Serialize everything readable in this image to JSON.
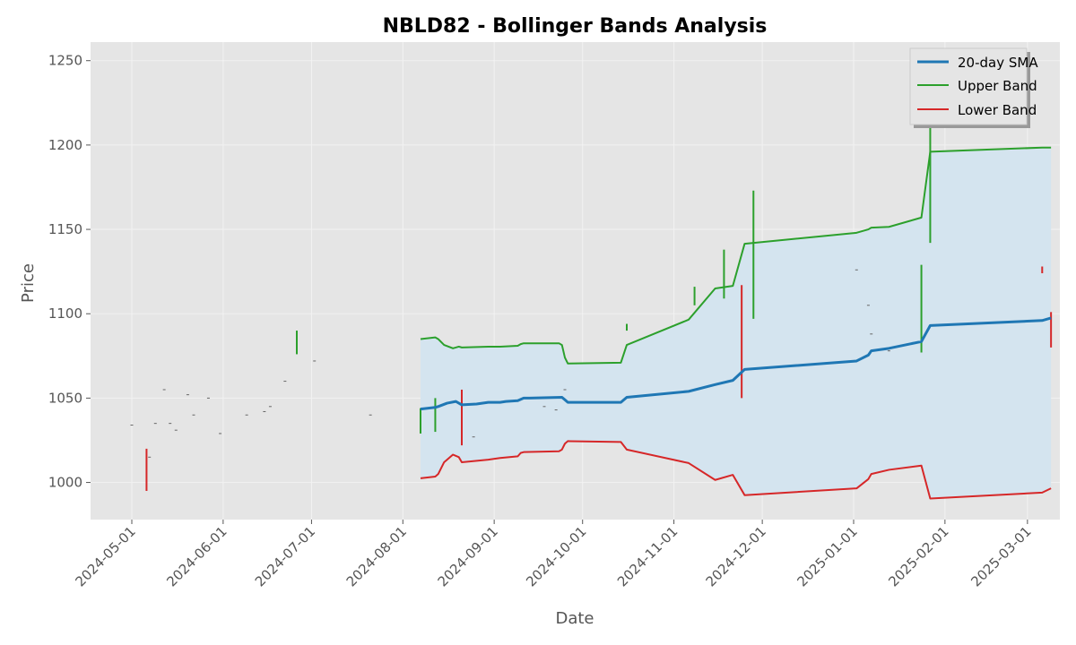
{
  "chart_data": {
    "type": "line",
    "title": "NBLD82 - Bollinger Bands Analysis",
    "xlabel": "Date",
    "ylabel": "Price",
    "xlim": [
      "2024-04-17",
      "2025-03-12"
    ],
    "ylim": [
      978,
      1261
    ],
    "grid": true,
    "legend_position": "top-right",
    "x_ticks": [
      "2024-05-01",
      "2024-06-01",
      "2024-07-01",
      "2024-08-01",
      "2024-09-01",
      "2024-10-01",
      "2024-11-01",
      "2024-12-01",
      "2025-01-01",
      "2025-02-01",
      "2025-03-01"
    ],
    "y_ticks": [
      1000,
      1050,
      1100,
      1150,
      1200,
      1250
    ],
    "colors": {
      "sma": "#1f77b4",
      "upper": "#2ca02c",
      "lower": "#d62728",
      "band_fill": "#d4e4ef",
      "plot_bg": "#e5e5e5",
      "grid": "#f2f2f2"
    },
    "series": [
      {
        "name": "20-day SMA",
        "x": [
          "2024-08-07",
          "2024-08-12",
          "2024-08-13",
          "2024-08-16",
          "2024-08-19",
          "2024-08-21",
          "2024-08-26",
          "2024-08-30",
          "2024-09-03",
          "2024-09-05",
          "2024-09-09",
          "2024-09-11",
          "2024-09-13",
          "2024-09-24",
          "2024-09-25",
          "2024-09-26",
          "2024-10-14",
          "2024-10-16",
          "2024-11-06",
          "2024-11-15",
          "2024-11-21",
          "2024-11-25",
          "2025-01-02",
          "2025-01-06",
          "2025-01-07",
          "2025-01-13",
          "2025-01-24",
          "2025-01-27",
          "2025-03-06",
          "2025-03-09"
        ],
        "values": [
          1043.5,
          1044.5,
          1045,
          1047,
          1048,
          1046,
          1046.5,
          1047.5,
          1047.5,
          1048,
          1048.5,
          1050,
          1050,
          1050.5,
          1049,
          1047.5,
          1047.5,
          1050.5,
          1054,
          1058,
          1060.5,
          1067,
          1072,
          1075.5,
          1078,
          1079.5,
          1083.5,
          1093,
          1096,
          1097.5
        ]
      },
      {
        "name": "Upper Band",
        "x": [
          "2024-08-07",
          "2024-08-12",
          "2024-08-13",
          "2024-08-15",
          "2024-08-18",
          "2024-08-20",
          "2024-08-21",
          "2024-08-30",
          "2024-09-03",
          "2024-09-09",
          "2024-09-10",
          "2024-09-11",
          "2024-09-23",
          "2024-09-24",
          "2024-09-25",
          "2024-09-26",
          "2024-10-14",
          "2024-10-16",
          "2024-11-06",
          "2024-11-15",
          "2024-11-21",
          "2024-11-25",
          "2025-01-02",
          "2025-01-06",
          "2025-01-07",
          "2025-01-13",
          "2025-01-24",
          "2025-01-27",
          "2025-03-06",
          "2025-03-09"
        ],
        "values": [
          1085,
          1086,
          1085,
          1081.5,
          1079.5,
          1080.5,
          1080,
          1080.5,
          1080.5,
          1081,
          1082,
          1082.5,
          1082.5,
          1081.5,
          1074,
          1070.5,
          1071,
          1081.5,
          1096.5,
          1115,
          1116.5,
          1141.5,
          1148,
          1150,
          1151,
          1151.5,
          1157,
          1196,
          1198.5,
          1198.5
        ]
      },
      {
        "name": "Lower Band",
        "x": [
          "2024-08-07",
          "2024-08-12",
          "2024-08-13",
          "2024-08-15",
          "2024-08-18",
          "2024-08-20",
          "2024-08-21",
          "2024-08-30",
          "2024-09-03",
          "2024-09-09",
          "2024-09-10",
          "2024-09-11",
          "2024-09-23",
          "2024-09-24",
          "2024-09-25",
          "2024-09-26",
          "2024-10-14",
          "2024-10-16",
          "2024-11-06",
          "2024-11-15",
          "2024-11-21",
          "2024-11-25",
          "2025-01-02",
          "2025-01-06",
          "2025-01-07",
          "2025-01-13",
          "2025-01-24",
          "2025-01-27",
          "2025-03-06",
          "2025-03-09"
        ],
        "values": [
          1002.5,
          1003.5,
          1005,
          1012,
          1016.5,
          1015,
          1012,
          1013.5,
          1014.5,
          1015.5,
          1017.5,
          1018,
          1018.5,
          1019.5,
          1023,
          1024.5,
          1024,
          1019.5,
          1011.5,
          1001.5,
          1004.5,
          992.5,
          996.5,
          1002,
          1005,
          1007.5,
          1010,
          990.5,
          994,
          996.5
        ]
      }
    ],
    "candles": [
      {
        "date": "2024-05-06",
        "low": 995,
        "high": 1020,
        "color": "#d62728"
      },
      {
        "date": "2024-06-26",
        "low": 1076,
        "high": 1090,
        "color": "#2ca02c"
      },
      {
        "date": "2024-08-07",
        "low": 1029,
        "high": 1044,
        "color": "#2ca02c"
      },
      {
        "date": "2024-08-12",
        "low": 1030,
        "high": 1050,
        "color": "#2ca02c"
      },
      {
        "date": "2024-08-21",
        "low": 1022,
        "high": 1055,
        "color": "#d62728"
      },
      {
        "date": "2024-10-16",
        "low": 1090,
        "high": 1094,
        "color": "#2ca02c"
      },
      {
        "date": "2024-11-08",
        "low": 1105,
        "high": 1116,
        "color": "#2ca02c"
      },
      {
        "date": "2024-11-18",
        "low": 1109,
        "high": 1138,
        "color": "#2ca02c"
      },
      {
        "date": "2024-11-24",
        "low": 1050,
        "high": 1117,
        "color": "#d62728"
      },
      {
        "date": "2024-11-28",
        "low": 1097,
        "high": 1173,
        "color": "#2ca02c"
      },
      {
        "date": "2025-01-24",
        "low": 1077,
        "high": 1129,
        "color": "#2ca02c"
      },
      {
        "date": "2025-01-27",
        "low": 1142,
        "high": 1248,
        "color": "#2ca02c"
      },
      {
        "date": "2025-03-06",
        "low": 1124,
        "high": 1128,
        "color": "#d62728"
      },
      {
        "date": "2025-03-09",
        "low": 1080,
        "high": 1101,
        "color": "#d62728"
      }
    ],
    "minor_marks": [
      {
        "date": "2024-05-01",
        "price": 1034
      },
      {
        "date": "2024-05-07",
        "price": 1015
      },
      {
        "date": "2024-05-09",
        "price": 1035
      },
      {
        "date": "2024-05-12",
        "price": 1055
      },
      {
        "date": "2024-05-14",
        "price": 1035
      },
      {
        "date": "2024-05-16",
        "price": 1031
      },
      {
        "date": "2024-05-20",
        "price": 1052
      },
      {
        "date": "2024-05-22",
        "price": 1040
      },
      {
        "date": "2024-05-27",
        "price": 1050
      },
      {
        "date": "2024-05-31",
        "price": 1029
      },
      {
        "date": "2024-06-09",
        "price": 1040
      },
      {
        "date": "2024-06-15",
        "price": 1042
      },
      {
        "date": "2024-06-17",
        "price": 1045
      },
      {
        "date": "2024-06-22",
        "price": 1060
      },
      {
        "date": "2024-07-02",
        "price": 1072
      },
      {
        "date": "2024-07-21",
        "price": 1040
      },
      {
        "date": "2024-08-25",
        "price": 1027
      },
      {
        "date": "2024-09-18",
        "price": 1045
      },
      {
        "date": "2024-09-22",
        "price": 1043
      },
      {
        "date": "2024-09-25",
        "price": 1055
      },
      {
        "date": "2025-01-02",
        "price": 1126
      },
      {
        "date": "2025-01-06",
        "price": 1105
      },
      {
        "date": "2025-01-07",
        "price": 1088
      },
      {
        "date": "2025-01-13",
        "price": 1078
      }
    ]
  }
}
